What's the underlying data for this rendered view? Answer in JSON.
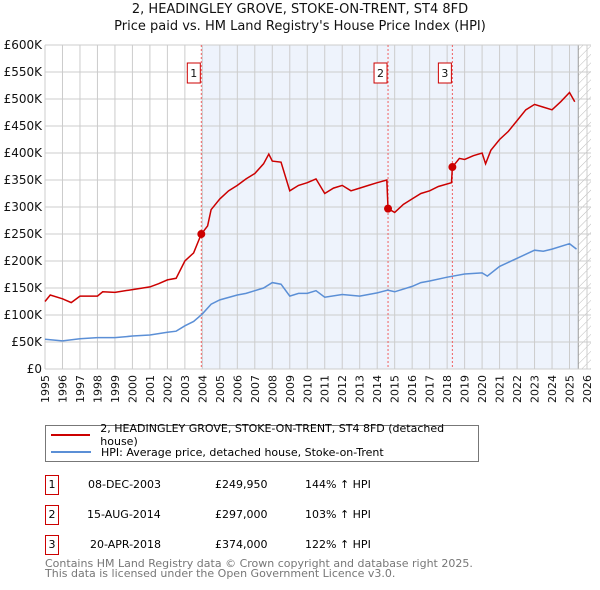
{
  "title": "2, HEADINGLEY GROVE, STOKE-ON-TRENT, ST4 8FD",
  "subtitle": "Price paid vs. HM Land Registry's House Price Index (HPI)",
  "chart_data": {
    "type": "line",
    "title": "2, HEADINGLEY GROVE, STOKE-ON-TRENT, ST4 8FD",
    "subtitle": "Price paid vs. HM Land Registry's House Price Index (HPI)",
    "xlim": [
      1995,
      2026
    ],
    "ylim": [
      0,
      600000
    ],
    "grid": true,
    "x_ticks": [
      "1995",
      "1996",
      "1997",
      "1998",
      "1999",
      "2000",
      "2001",
      "2002",
      "2003",
      "2004",
      "2005",
      "2006",
      "2007",
      "2008",
      "2009",
      "2010",
      "2011",
      "2012",
      "2013",
      "2014",
      "2015",
      "2016",
      "2017",
      "2018",
      "2019",
      "2020",
      "2021",
      "2022",
      "2023",
      "2024",
      "2025",
      "2026"
    ],
    "y_ticks": [
      {
        "v": 0,
        "l": "£0"
      },
      {
        "v": 50000,
        "l": "£50K"
      },
      {
        "v": 100000,
        "l": "£100K"
      },
      {
        "v": 150000,
        "l": "£150K"
      },
      {
        "v": 200000,
        "l": "£200K"
      },
      {
        "v": 250000,
        "l": "£250K"
      },
      {
        "v": 300000,
        "l": "£300K"
      },
      {
        "v": 350000,
        "l": "£350K"
      },
      {
        "v": 400000,
        "l": "£400K"
      },
      {
        "v": 450000,
        "l": "£450K"
      },
      {
        "v": 500000,
        "l": "£500K"
      },
      {
        "v": 550000,
        "l": "£550K"
      },
      {
        "v": 600000,
        "l": "£600K"
      }
    ],
    "shaded_range": [
      2003.94,
      2025.5
    ],
    "series": [
      {
        "name": "2, HEADINGLEY GROVE, STOKE-ON-TRENT, ST4 8FD (detached house)",
        "color": "#cc0000",
        "points": [
          [
            1995,
            125000
          ],
          [
            1995.3,
            137000
          ],
          [
            1996,
            130000
          ],
          [
            1996.5,
            123000
          ],
          [
            1997,
            135000
          ],
          [
            1998,
            135000
          ],
          [
            1998.3,
            143000
          ],
          [
            1999,
            142000
          ],
          [
            2000,
            147000
          ],
          [
            2001,
            152000
          ],
          [
            2001.5,
            158000
          ],
          [
            2002,
            165000
          ],
          [
            2002.5,
            168000
          ],
          [
            2003,
            200000
          ],
          [
            2003.5,
            215000
          ],
          [
            2003.94,
            249950
          ],
          [
            2004.3,
            265000
          ],
          [
            2004.5,
            295000
          ],
          [
            2005,
            315000
          ],
          [
            2005.5,
            330000
          ],
          [
            2006,
            340000
          ],
          [
            2006.5,
            352000
          ],
          [
            2007,
            362000
          ],
          [
            2007.5,
            380000
          ],
          [
            2007.8,
            398000
          ],
          [
            2008,
            385000
          ],
          [
            2008.5,
            383000
          ],
          [
            2009,
            330000
          ],
          [
            2009.5,
            340000
          ],
          [
            2010,
            345000
          ],
          [
            2010.5,
            352000
          ],
          [
            2011,
            325000
          ],
          [
            2011.5,
            335000
          ],
          [
            2012,
            340000
          ],
          [
            2012.5,
            330000
          ],
          [
            2013,
            335000
          ],
          [
            2013.5,
            340000
          ],
          [
            2014,
            345000
          ],
          [
            2014.55,
            350000
          ],
          [
            2014.62,
            297000
          ],
          [
            2015,
            290000
          ],
          [
            2015.5,
            305000
          ],
          [
            2016,
            315000
          ],
          [
            2016.5,
            325000
          ],
          [
            2017,
            330000
          ],
          [
            2017.5,
            338000
          ],
          [
            2018.25,
            345000
          ],
          [
            2018.3,
            374000
          ],
          [
            2018.7,
            390000
          ],
          [
            2019,
            388000
          ],
          [
            2019.5,
            395000
          ],
          [
            2020,
            400000
          ],
          [
            2020.2,
            380000
          ],
          [
            2020.5,
            405000
          ],
          [
            2021,
            425000
          ],
          [
            2021.5,
            440000
          ],
          [
            2022,
            460000
          ],
          [
            2022.5,
            480000
          ],
          [
            2023,
            490000
          ],
          [
            2023.5,
            485000
          ],
          [
            2024,
            480000
          ],
          [
            2024.5,
            495000
          ],
          [
            2025,
            512000
          ],
          [
            2025.3,
            495000
          ]
        ]
      },
      {
        "name": "HPI: Average price, detached house, Stoke-on-Trent",
        "color": "#5b8fd6",
        "points": [
          [
            1995,
            55000
          ],
          [
            1996,
            52000
          ],
          [
            1997,
            56000
          ],
          [
            1998,
            58000
          ],
          [
            1999,
            58000
          ],
          [
            2000,
            61000
          ],
          [
            2001,
            63000
          ],
          [
            2002,
            68000
          ],
          [
            2002.5,
            70000
          ],
          [
            2003,
            80000
          ],
          [
            2003.5,
            88000
          ],
          [
            2004,
            102000
          ],
          [
            2004.5,
            120000
          ],
          [
            2005,
            128000
          ],
          [
            2006,
            137000
          ],
          [
            2006.5,
            140000
          ],
          [
            2007,
            145000
          ],
          [
            2007.5,
            150000
          ],
          [
            2008,
            160000
          ],
          [
            2008.5,
            157000
          ],
          [
            2009,
            135000
          ],
          [
            2009.5,
            140000
          ],
          [
            2010,
            140000
          ],
          [
            2010.5,
            145000
          ],
          [
            2011,
            133000
          ],
          [
            2012,
            138000
          ],
          [
            2013,
            135000
          ],
          [
            2014,
            141000
          ],
          [
            2014.6,
            146000
          ],
          [
            2015,
            143000
          ],
          [
            2016,
            153000
          ],
          [
            2016.5,
            160000
          ],
          [
            2017,
            163000
          ],
          [
            2018,
            170000
          ],
          [
            2019,
            176000
          ],
          [
            2020,
            178000
          ],
          [
            2020.3,
            172000
          ],
          [
            2021,
            190000
          ],
          [
            2022,
            205000
          ],
          [
            2023,
            220000
          ],
          [
            2023.5,
            218000
          ],
          [
            2024,
            222000
          ],
          [
            2025,
            232000
          ],
          [
            2025.4,
            222000
          ]
        ]
      }
    ],
    "sales": [
      {
        "n": "1",
        "x": 2003.94,
        "y": 249950
      },
      {
        "n": "2",
        "x": 2014.62,
        "y": 297000
      },
      {
        "n": "3",
        "x": 2018.3,
        "y": 374000
      }
    ]
  },
  "legend": {
    "property": "2, HEADINGLEY GROVE, STOKE-ON-TRENT, ST4 8FD (detached house)",
    "hpi": "HPI: Average price, detached house, Stoke-on-Trent"
  },
  "transactions": [
    {
      "n": "1",
      "date": "08-DEC-2003",
      "price": "£249,950",
      "hpi": "144% ↑ HPI"
    },
    {
      "n": "2",
      "date": "15-AUG-2014",
      "price": "£297,000",
      "hpi": "103% ↑ HPI"
    },
    {
      "n": "3",
      "date": "20-APR-2018",
      "price": "£374,000",
      "hpi": "122% ↑ HPI"
    }
  ],
  "footer": {
    "line1": "Contains HM Land Registry data © Crown copyright and database right 2025.",
    "line2": "This data is licensed under the Open Government Licence v3.0."
  }
}
